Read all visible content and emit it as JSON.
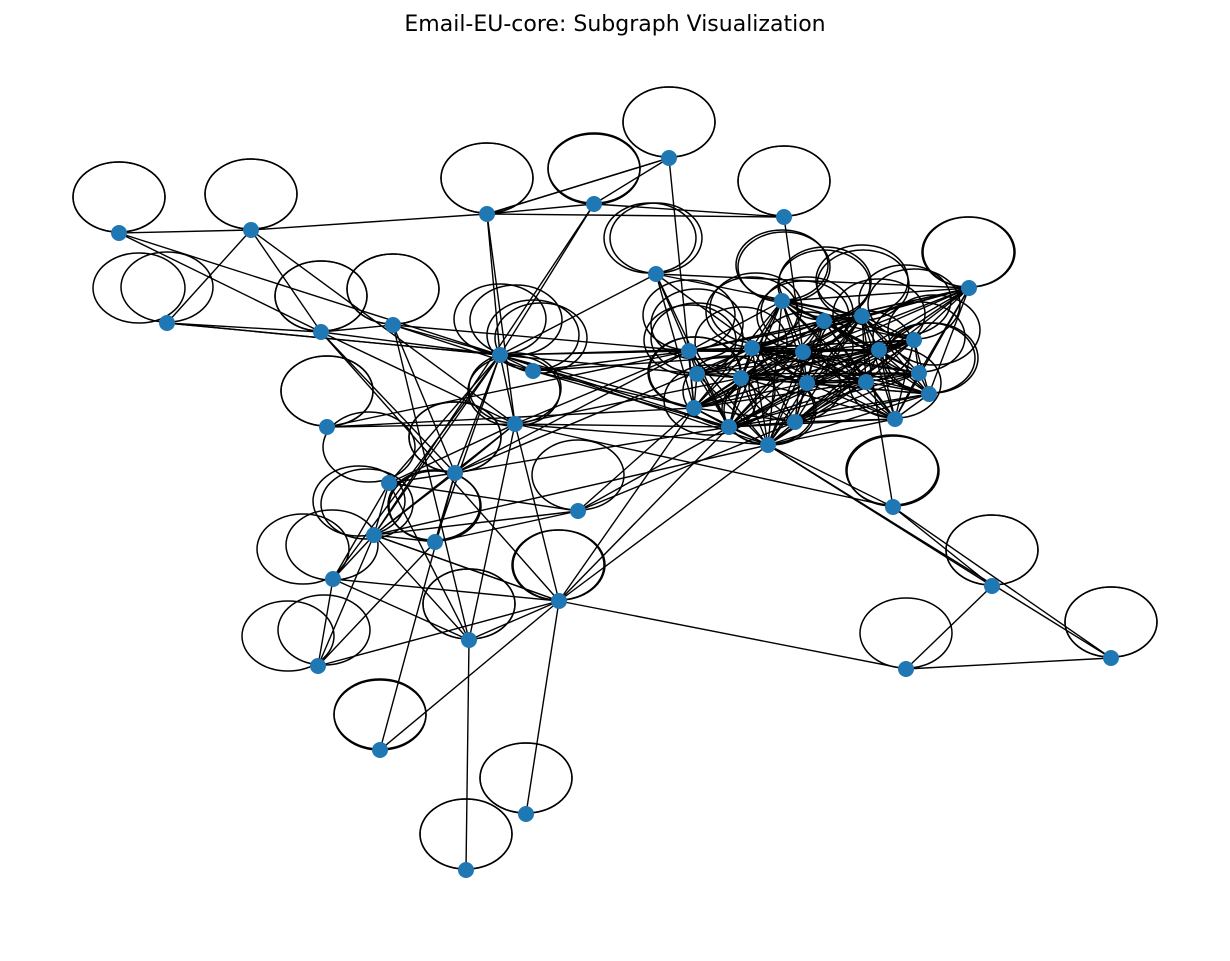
{
  "title": "Email-EU-core: Subgraph Visualization",
  "colors": {
    "node": "#1f77b4",
    "edge": "#000000",
    "background": "#ffffff"
  },
  "graph": {
    "directed": false,
    "self_loops_on_all_nodes": true,
    "node_count": 52
  }
}
